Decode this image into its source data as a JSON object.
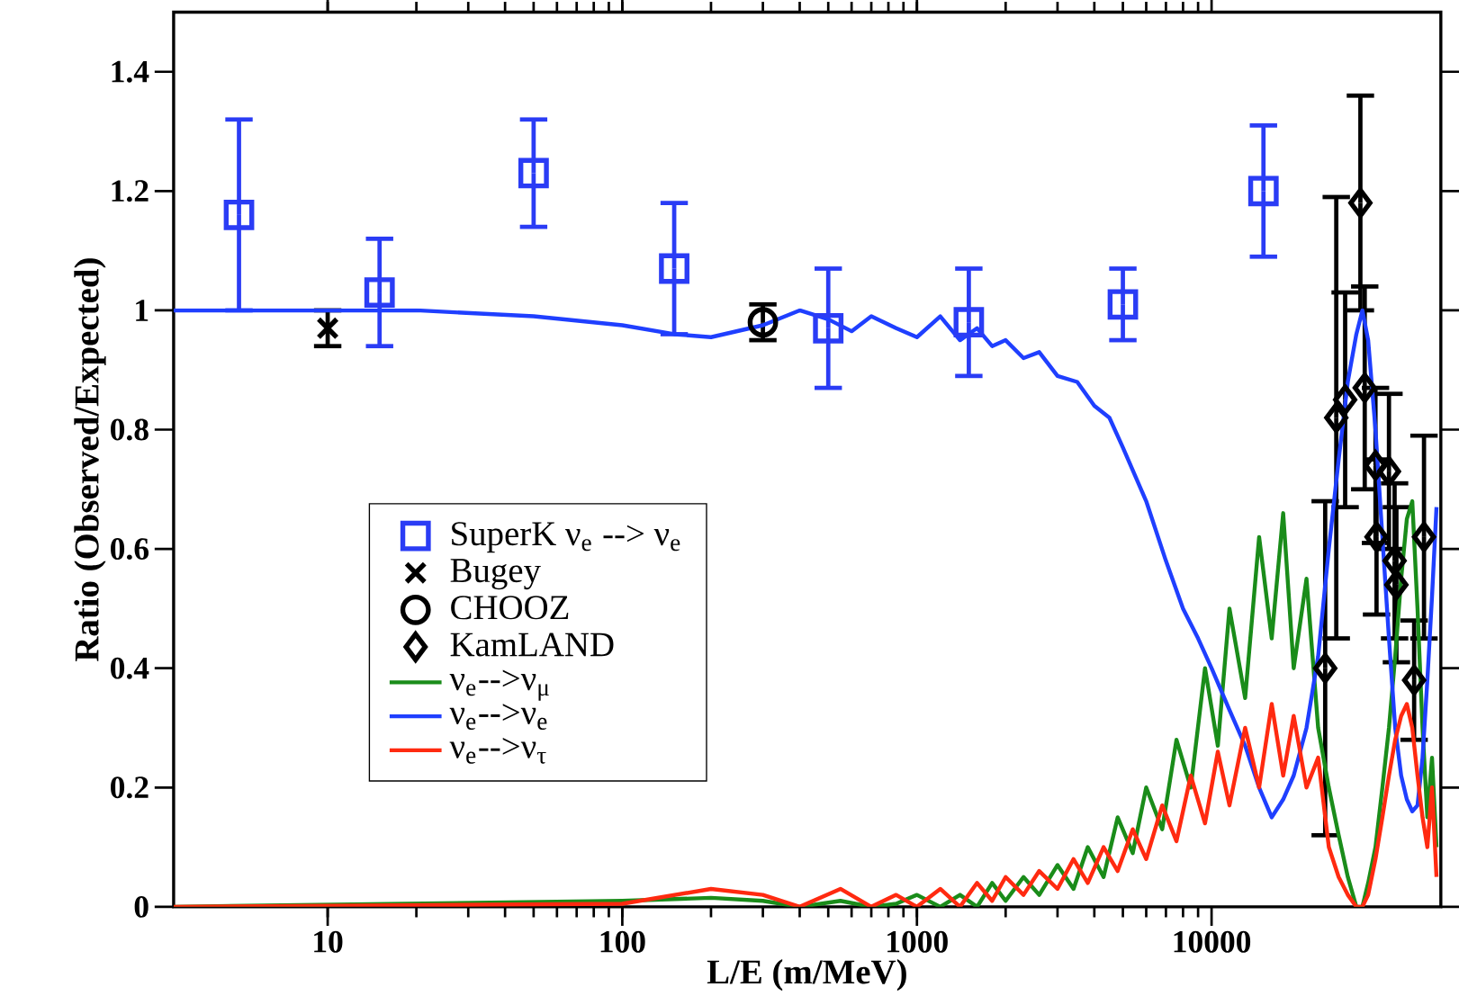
{
  "chart_data": {
    "type": "scatter",
    "xlabel": "L/E (m/MeV)",
    "ylabel": "Ratio (Observed/Expected)",
    "log": "x",
    "xlim": [
      3,
      60000
    ],
    "ylim": [
      0,
      1.5
    ],
    "xticks": [
      10,
      100,
      1000,
      10000
    ],
    "yticks": [
      0,
      0.2,
      0.4,
      0.6,
      0.8,
      1,
      1.2,
      1.4
    ],
    "legend": "left",
    "grid": false,
    "series": [
      {
        "name": "SuperK ν$_{e}$ --> ν$_{e}$",
        "color": "#2a3cf5",
        "marker": "square",
        "x": [
          5,
          15,
          50,
          150,
          500,
          1500,
          5000,
          15000
        ],
        "values": [
          1.16,
          1.03,
          1.23,
          1.07,
          0.97,
          0.98,
          1.01,
          1.2
        ],
        "errors": [
          0.16,
          0.09,
          0.09,
          0.11,
          0.1,
          0.09,
          0.06,
          0.11
        ]
      },
      {
        "name": "Bugey",
        "color": "#000000",
        "marker": "cross",
        "x": [
          10
        ],
        "values": [
          0.97
        ],
        "errors": [
          0.03
        ]
      },
      {
        "name": "CHOOZ",
        "color": "#000000",
        "marker": "circle",
        "x": [
          300
        ],
        "values": [
          0.98
        ],
        "errors": [
          0.03
        ]
      },
      {
        "name": "KamLAND",
        "color": "#000000",
        "marker": "diamond",
        "x": [
          24300,
          26500,
          28400,
          32000,
          33100,
          36000,
          40000,
          36300,
          41800,
          42400,
          48700,
          52600
        ],
        "values": [
          0.4,
          0.82,
          0.85,
          1.18,
          0.87,
          0.74,
          0.73,
          0.62,
          0.58,
          0.54,
          0.38,
          0.62
        ],
        "errors": [
          0.28,
          0.37,
          0.18,
          0.18,
          0.17,
          0.13,
          0.13,
          0.13,
          0.13,
          0.13,
          0.1,
          0.17
        ]
      },
      {
        "name": "ν$_{e}$-->ν$_{μ}$",
        "type": "line",
        "color": "#1a8c1a",
        "marker": "none",
        "x": [
          3,
          100,
          200,
          300,
          400,
          550,
          700,
          850,
          1000,
          1200,
          1400,
          1600,
          1800,
          2000,
          2300,
          2600,
          3000,
          3400,
          3800,
          4300,
          4800,
          5400,
          6000,
          6800,
          7600,
          8500,
          9500,
          10500,
          11500,
          13000,
          14500,
          16000,
          17500,
          19000,
          21000,
          23000,
          25000,
          27000,
          29000,
          31000,
          32500,
          34000,
          36000,
          38000,
          40000,
          42000,
          44000,
          46000,
          48000,
          50000,
          52000,
          54000,
          56000,
          58000
        ],
        "values": [
          0,
          0.01,
          0.015,
          0.01,
          0,
          0.01,
          0,
          0.005,
          0.02,
          0.0,
          0.02,
          0.0,
          0.04,
          0.01,
          0.05,
          0.02,
          0.07,
          0.03,
          0.1,
          0.05,
          0.15,
          0.09,
          0.2,
          0.13,
          0.28,
          0.2,
          0.4,
          0.27,
          0.5,
          0.35,
          0.62,
          0.45,
          0.66,
          0.4,
          0.55,
          0.3,
          0.2,
          0.12,
          0.05,
          0.0,
          0.0,
          0.04,
          0.1,
          0.2,
          0.3,
          0.42,
          0.55,
          0.65,
          0.68,
          0.5,
          0.3,
          0.15,
          0.25,
          0.1
        ]
      },
      {
        "name": "ν$_{e}$-->ν$_{e}$",
        "type": "line",
        "color": "#1f3fff",
        "marker": "none",
        "x": [
          3,
          20,
          50,
          100,
          150,
          200,
          300,
          400,
          500,
          600,
          700,
          850,
          1000,
          1200,
          1400,
          1600,
          1800,
          2000,
          2300,
          2600,
          3000,
          3500,
          4000,
          4500,
          5000,
          6000,
          7000,
          8000,
          9000,
          10000,
          11500,
          13000,
          14500,
          16000,
          17500,
          19000,
          21000,
          23000,
          25000,
          27000,
          29000,
          31000,
          32500,
          34000,
          36000,
          38000,
          40000,
          42000,
          44000,
          46000,
          48000,
          50000,
          52000,
          54000,
          56000,
          58000
        ],
        "values": [
          1.0,
          1.0,
          0.99,
          0.975,
          0.96,
          0.955,
          0.975,
          1.0,
          0.985,
          0.965,
          0.99,
          0.97,
          0.955,
          0.99,
          0.95,
          0.97,
          0.94,
          0.95,
          0.92,
          0.93,
          0.89,
          0.88,
          0.84,
          0.82,
          0.77,
          0.68,
          0.58,
          0.5,
          0.45,
          0.4,
          0.33,
          0.27,
          0.2,
          0.15,
          0.18,
          0.22,
          0.3,
          0.42,
          0.6,
          0.75,
          0.88,
          0.96,
          1.0,
          0.95,
          0.8,
          0.62,
          0.45,
          0.3,
          0.22,
          0.18,
          0.16,
          0.17,
          0.25,
          0.38,
          0.52,
          0.67
        ]
      },
      {
        "name": "ν$_{e}$-->ν$_{τ}$",
        "type": "line",
        "color": "#ff2a10",
        "marker": "none",
        "x": [
          3,
          100,
          200,
          300,
          400,
          550,
          700,
          850,
          1000,
          1200,
          1400,
          1600,
          1800,
          2000,
          2300,
          2600,
          3000,
          3400,
          3800,
          4300,
          4800,
          5400,
          6000,
          6800,
          7600,
          8500,
          9500,
          10500,
          11500,
          13000,
          14500,
          16000,
          17500,
          19000,
          21000,
          23000,
          25000,
          27000,
          29000,
          31000,
          32500,
          34000,
          36000,
          38000,
          40000,
          42000,
          44000,
          46000,
          48000,
          50000,
          52000,
          54000,
          56000,
          58000
        ],
        "values": [
          0,
          0.005,
          0.03,
          0.02,
          0,
          0.03,
          0,
          0.02,
          0.0,
          0.03,
          0.0,
          0.04,
          0.01,
          0.05,
          0.02,
          0.06,
          0.03,
          0.08,
          0.04,
          0.1,
          0.06,
          0.13,
          0.08,
          0.17,
          0.11,
          0.22,
          0.14,
          0.26,
          0.17,
          0.3,
          0.2,
          0.34,
          0.22,
          0.32,
          0.2,
          0.25,
          0.1,
          0.05,
          0.02,
          0.0,
          0.0,
          0.02,
          0.08,
          0.15,
          0.22,
          0.28,
          0.32,
          0.34,
          0.3,
          0.22,
          0.15,
          0.1,
          0.2,
          0.05
        ]
      }
    ]
  }
}
